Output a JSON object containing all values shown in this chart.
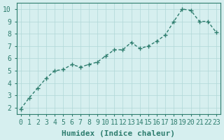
{
  "x": [
    0,
    1,
    2,
    3,
    4,
    5,
    6,
    7,
    8,
    9,
    10,
    11,
    12,
    13,
    14,
    15,
    16,
    17,
    18,
    19,
    20,
    21,
    22,
    23
  ],
  "y": [
    1.9,
    2.8,
    3.6,
    4.4,
    5.0,
    5.1,
    5.5,
    5.3,
    5.5,
    5.7,
    6.2,
    6.7,
    6.7,
    7.3,
    6.8,
    7.0,
    7.4,
    7.9,
    9.0,
    10.0,
    9.9,
    9.0,
    9.0,
    8.1
  ],
  "xlabel": "Humidex (Indice chaleur)",
  "ylabel": "",
  "title": "",
  "xlim": [
    -0.5,
    23.5
  ],
  "ylim": [
    1.5,
    10.5
  ],
  "yticks": [
    2,
    3,
    4,
    5,
    6,
    7,
    8,
    9,
    10
  ],
  "xticks": [
    0,
    1,
    2,
    3,
    4,
    5,
    6,
    7,
    8,
    9,
    10,
    11,
    12,
    13,
    14,
    15,
    16,
    17,
    18,
    19,
    20,
    21,
    22,
    23
  ],
  "line_color": "#2e7d6e",
  "marker": "+",
  "bg_color": "#d6efef",
  "grid_color": "#b0d8d8",
  "axis_color": "#2e7d6e",
  "xlabel_fontsize": 8,
  "tick_fontsize": 7
}
